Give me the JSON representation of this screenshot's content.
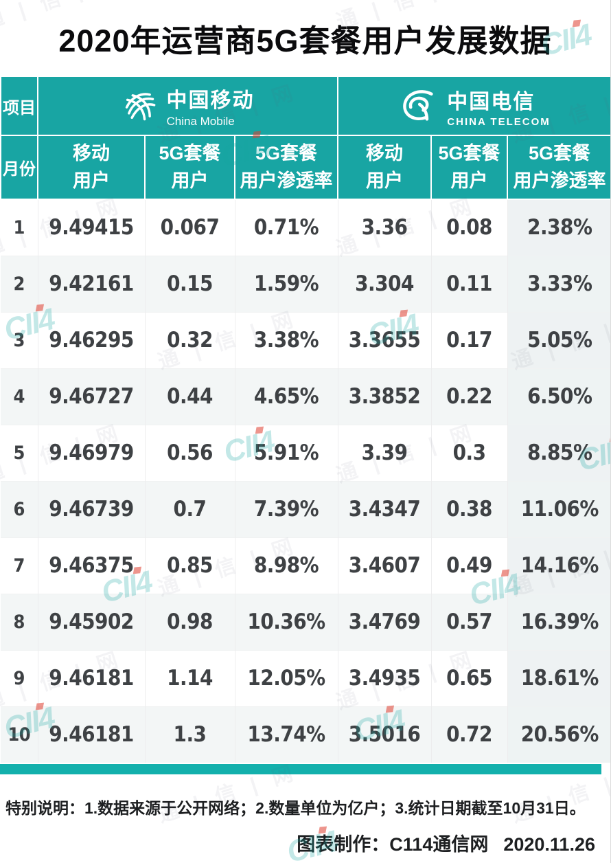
{
  "title": "2020年运营商5G套餐用户发展数据",
  "table": {
    "corner_label": "项目",
    "month_label": "月份",
    "operators": [
      {
        "name_cn": "中国移动",
        "name_en": "China Mobile"
      },
      {
        "name_cn": "中国电信",
        "name_en": "CHINA TELECOM"
      }
    ],
    "sub_columns": [
      {
        "line1": "移动",
        "line2": "用户"
      },
      {
        "line1": "5G套餐",
        "line2": "用户"
      },
      {
        "line1": "5G套餐",
        "line2": "用户渗透率"
      }
    ],
    "rows": [
      {
        "month": "1",
        "cm_users": "9.49415",
        "cm_5g": "0.067",
        "cm_rate": "0.71%",
        "ct_users": "3.36",
        "ct_5g": "0.08",
        "ct_rate": "2.38%"
      },
      {
        "month": "2",
        "cm_users": "9.42161",
        "cm_5g": "0.15",
        "cm_rate": "1.59%",
        "ct_users": "3.304",
        "ct_5g": "0.11",
        "ct_rate": "3.33%"
      },
      {
        "month": "3",
        "cm_users": "9.46295",
        "cm_5g": "0.32",
        "cm_rate": "3.38%",
        "ct_users": "3.3655",
        "ct_5g": "0.17",
        "ct_rate": "5.05%"
      },
      {
        "month": "4",
        "cm_users": "9.46727",
        "cm_5g": "0.44",
        "cm_rate": "4.65%",
        "ct_users": "3.3852",
        "ct_5g": "0.22",
        "ct_rate": "6.50%"
      },
      {
        "month": "5",
        "cm_users": "9.46979",
        "cm_5g": "0.56",
        "cm_rate": "5.91%",
        "ct_users": "3.39",
        "ct_5g": "0.3",
        "ct_rate": "8.85%"
      },
      {
        "month": "6",
        "cm_users": "9.46739",
        "cm_5g": "0.7",
        "cm_rate": "7.39%",
        "ct_users": "3.4347",
        "ct_5g": "0.38",
        "ct_rate": "11.06%"
      },
      {
        "month": "7",
        "cm_users": "9.46375",
        "cm_5g": "0.85",
        "cm_rate": "8.98%",
        "ct_users": "3.4607",
        "ct_5g": "0.49",
        "ct_rate": "14.16%"
      },
      {
        "month": "8",
        "cm_users": "9.45902",
        "cm_5g": "0.98",
        "cm_rate": "10.36%",
        "ct_users": "3.4769",
        "ct_5g": "0.57",
        "ct_rate": "16.39%"
      },
      {
        "month": "9",
        "cm_users": "9.46181",
        "cm_5g": "1.14",
        "cm_rate": "12.05%",
        "ct_users": "3.4935",
        "ct_5g": "0.65",
        "ct_rate": "18.61%"
      },
      {
        "month": "10",
        "cm_users": "9.46181",
        "cm_5g": "1.3",
        "cm_rate": "13.74%",
        "ct_users": "3.5016",
        "ct_5g": "0.72",
        "ct_rate": "20.56%"
      }
    ]
  },
  "footer": {
    "note": "特别说明：1.数据来源于公开网络；2.数量单位为亿户；3.统计日期截至10月31日。",
    "credit": "图表制作：C114通信网",
    "date": "2020.11.26"
  },
  "watermark": {
    "chars": [
      "通",
      "信",
      "网"
    ],
    "logo": "CII4"
  },
  "colors": {
    "header_teal": "#18a5a3",
    "bottom_bar_teal": "#13b0ac",
    "row_alt": "#f3f6f6",
    "value_text": "#3e4144",
    "watermark_teal": "#18a5a3",
    "watermark_accent_red": "#de3e30"
  },
  "chart_data": {
    "type": "table",
    "title": "2020年运营商5G套餐用户发展数据",
    "unit": "亿户",
    "note": "统计日期截至10月31日",
    "categories": [
      1,
      2,
      3,
      4,
      5,
      6,
      7,
      8,
      9,
      10
    ],
    "xlabel": "月份",
    "series": [
      {
        "name": "中国移动-移动用户",
        "values": [
          9.49415,
          9.42161,
          9.46295,
          9.46727,
          9.46979,
          9.46739,
          9.46375,
          9.45902,
          9.46181,
          9.46181
        ]
      },
      {
        "name": "中国移动-5G套餐用户",
        "values": [
          0.067,
          0.15,
          0.32,
          0.44,
          0.56,
          0.7,
          0.85,
          0.98,
          1.14,
          1.3
        ]
      },
      {
        "name": "中国移动-5G套餐用户渗透率",
        "values": [
          "0.71%",
          "1.59%",
          "3.38%",
          "4.65%",
          "5.91%",
          "7.39%",
          "8.98%",
          "10.36%",
          "12.05%",
          "13.74%"
        ]
      },
      {
        "name": "中国电信-移动用户",
        "values": [
          3.36,
          3.304,
          3.3655,
          3.3852,
          3.39,
          3.4347,
          3.4607,
          3.4769,
          3.4935,
          3.5016
        ]
      },
      {
        "name": "中国电信-5G套餐用户",
        "values": [
          0.08,
          0.11,
          0.17,
          0.22,
          0.3,
          0.38,
          0.49,
          0.57,
          0.65,
          0.72
        ]
      },
      {
        "name": "中国电信-5G套餐用户渗透率",
        "values": [
          "2.38%",
          "3.33%",
          "5.05%",
          "6.50%",
          "8.85%",
          "11.06%",
          "14.16%",
          "16.39%",
          "18.61%",
          "20.56%"
        ]
      }
    ]
  }
}
